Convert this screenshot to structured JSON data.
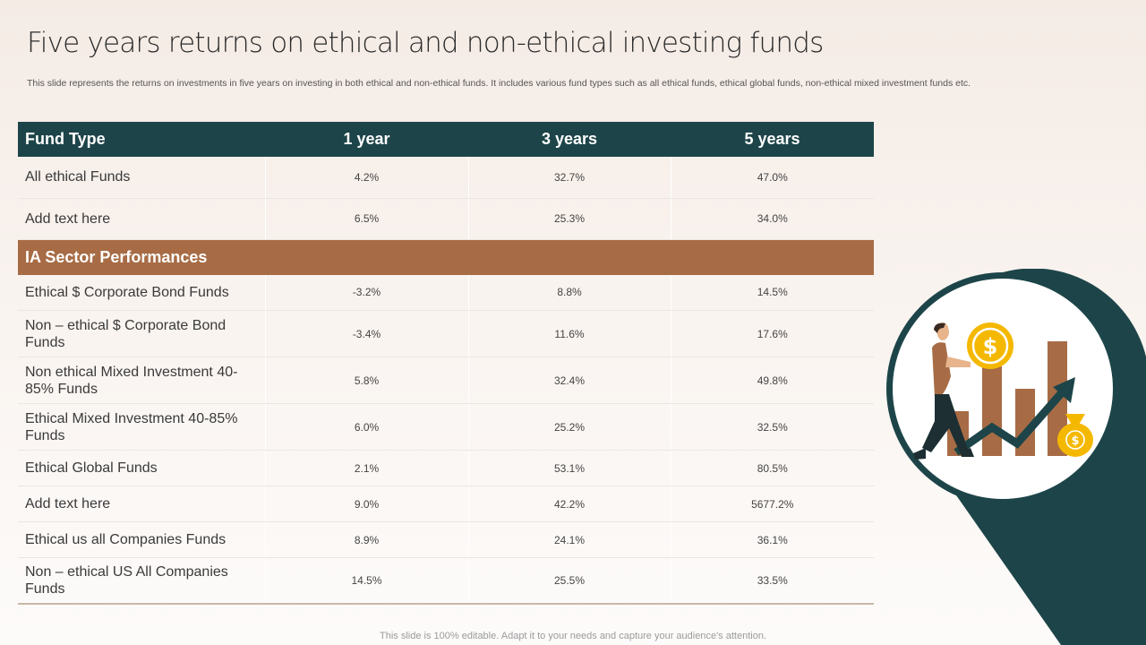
{
  "title": "Five years returns on ethical and non-ethical investing funds",
  "subtitle": "This slide represents the returns on investments in five years on investing in both ethical and non-ethical funds. It includes various fund types such as all ethical funds, ethical global funds, non-ethical mixed investment funds etc.",
  "table": {
    "headers": [
      "Fund Type",
      "1 year",
      "3 years",
      "5 years"
    ],
    "rows_top": [
      {
        "name": "All ethical Funds",
        "y1": "4.2%",
        "y3": "32.7%",
        "y5": "47.0%"
      },
      {
        "name": "Add text here",
        "y1": "6.5%",
        "y3": "25.3%",
        "y5": "34.0%"
      }
    ],
    "section_label": "IA Sector Performances",
    "rows_bottom": [
      {
        "name": "Ethical $ Corporate Bond Funds",
        "y1": "-3.2%",
        "y3": "8.8%",
        "y5": "14.5%"
      },
      {
        "name": "Non – ethical $ Corporate Bond Funds",
        "y1": "-3.4%",
        "y3": "11.6%",
        "y5": "17.6%"
      },
      {
        "name": "Non ethical Mixed Investment  40-85% Funds",
        "y1": "5.8%",
        "y3": "32.4%",
        "y5": "49.8%"
      },
      {
        "name": "Ethical Mixed Investment  40-85% Funds",
        "y1": "6.0%",
        "y3": "25.2%",
        "y5": "32.5%"
      },
      {
        "name": "Ethical Global Funds",
        "y1": "2.1%",
        "y3": "53.1%",
        "y5": "80.5%"
      },
      {
        "name": "Add text here",
        "y1": "9.0%",
        "y3": "42.2%",
        "y5": "5677.2%"
      },
      {
        "name": "Ethical us all Companies Funds",
        "y1": "8.9%",
        "y3": "24.1%",
        "y5": "36.1%"
      },
      {
        "name": "Non – ethical US All Companies Funds",
        "y1": "14.5%",
        "y3": "25.5%",
        "y5": "33.5%"
      }
    ]
  },
  "footer": "This slide is 100% editable. Adapt it to your needs and capture your audience's attention.",
  "colors": {
    "header_bg": "#1d4549",
    "section_bg": "#a76c45",
    "coin": "#f5b800",
    "bar": "#a76c45",
    "arrow": "#1d4549"
  },
  "illustration": {
    "icons": [
      "person-icon",
      "dollar-coin-icon",
      "money-bag-icon",
      "growth-arrow-icon",
      "bar-chart-icon"
    ]
  }
}
